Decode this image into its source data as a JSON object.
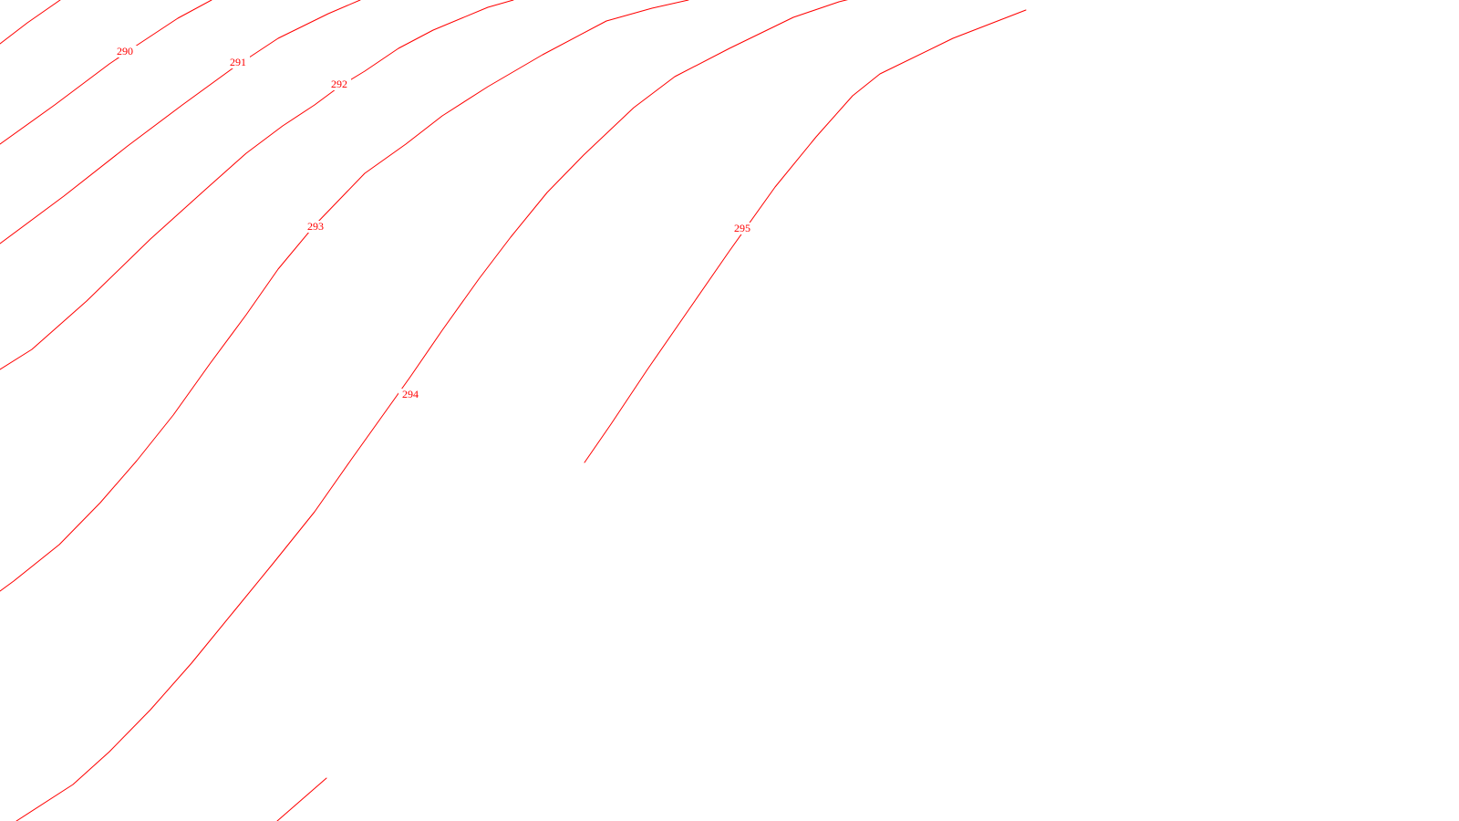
{
  "map": {
    "line_color": "#ff0000",
    "background_color": "#ffffff",
    "contour_labels": {
      "c290": "290",
      "c291": "291",
      "c292": "292",
      "c293": "293",
      "c294": "294",
      "c295": "295"
    }
  }
}
